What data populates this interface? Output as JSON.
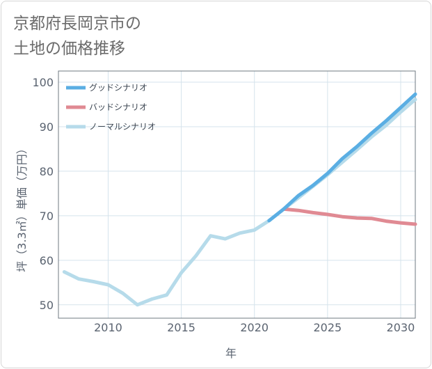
{
  "chart_data": {
    "type": "line",
    "title": [
      "京都府長岡京市の",
      "土地の価格推移"
    ],
    "xlabel": "年",
    "ylabel": "坪（3.3㎡）単価（万円）",
    "xlim": [
      2006.6,
      2031.0
    ],
    "ylim": [
      47.0,
      102.5
    ],
    "xticks": [
      2010,
      2015,
      2020,
      2025,
      2030
    ],
    "yticks": [
      50,
      60,
      70,
      80,
      90,
      100
    ],
    "xtick_labels": [
      "2010",
      "2015",
      "2020",
      "2025",
      "2030"
    ],
    "ytick_labels": [
      "50",
      "60",
      "70",
      "80",
      "90",
      "100"
    ],
    "grid": true,
    "legend_position": "top-left",
    "series": [
      {
        "name": "グッドシナリオ",
        "color": "#5aaee3",
        "x": [
          2021,
          2022,
          2023,
          2024,
          2025,
          2026,
          2027,
          2028,
          2029,
          2030,
          2031
        ],
        "values": [
          68.9,
          71.5,
          74.5,
          76.8,
          79.5,
          82.8,
          85.5,
          88.5,
          91.3,
          94.3,
          97.3
        ]
      },
      {
        "name": "バッドシナリオ",
        "color": "#e08a93",
        "x": [
          2022,
          2023,
          2024,
          2025,
          2026,
          2027,
          2028,
          2029,
          2030,
          2031
        ],
        "values": [
          71.5,
          71.2,
          70.7,
          70.3,
          69.8,
          69.5,
          69.4,
          68.8,
          68.4,
          68.1
        ]
      },
      {
        "name": "ノーマルシナリオ",
        "color": "#b6dbea",
        "x": [
          2007,
          2008,
          2009,
          2010,
          2011,
          2012,
          2013,
          2014,
          2015,
          2016,
          2017,
          2018,
          2019,
          2020,
          2021,
          2022,
          2023,
          2024,
          2025,
          2026,
          2027,
          2028,
          2029,
          2030,
          2031
        ],
        "values": [
          57.4,
          55.8,
          55.2,
          54.5,
          52.6,
          50.0,
          51.3,
          52.2,
          57.2,
          61.0,
          65.5,
          64.8,
          66.1,
          66.8,
          68.9,
          71.5,
          74.0,
          76.6,
          79.2,
          82.0,
          84.8,
          87.7,
          90.3,
          93.3,
          96.1
        ]
      }
    ]
  }
}
